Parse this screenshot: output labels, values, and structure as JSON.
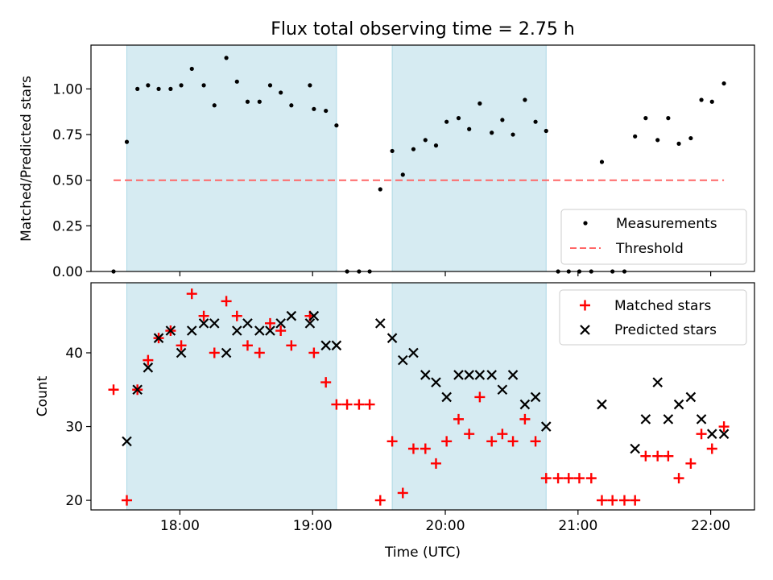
{
  "colors": {
    "shade": "#add8e6",
    "matched": "#ff0000",
    "predicted": "#000000",
    "threshold": "#ff6666",
    "measurement": "#000000"
  },
  "chart_data": [
    {
      "type": "scatter",
      "title": "Flux total observing time = 2.75 h",
      "xlabel": "Time (UTC)",
      "ylabel": "Matched/Predicted stars",
      "xlim_hours": [
        17.33,
        22.33
      ],
      "ylim": [
        0,
        1.24
      ],
      "yticks": [
        0,
        0.25,
        0.5,
        0.75,
        1.0
      ],
      "ytick_labels": [
        "0.00",
        "0.25",
        "0.50",
        "0.75",
        "1.00"
      ],
      "shaded_intervals_hours": [
        [
          17.6,
          19.18
        ],
        [
          19.6,
          20.76
        ]
      ],
      "threshold": {
        "value": 0.5,
        "x_range_hours": [
          17.5,
          22.1
        ]
      },
      "legend": {
        "position": "lower-right",
        "entries": [
          "Measurements",
          "Threshold"
        ]
      },
      "series": [
        {
          "name": "Measurements",
          "marker": "dot",
          "x_hours": [
            17.5,
            17.6,
            17.68,
            17.76,
            17.84,
            17.93,
            18.01,
            18.09,
            18.18,
            18.26,
            18.35,
            18.43,
            18.51,
            18.6,
            18.68,
            18.76,
            18.84,
            18.98,
            19.01,
            19.1,
            19.18,
            19.26,
            19.35,
            19.43,
            19.51,
            19.6,
            19.68,
            19.76,
            19.85,
            19.93,
            20.01,
            20.1,
            20.18,
            20.26,
            20.35,
            20.43,
            20.51,
            20.6,
            20.68,
            20.76,
            20.85,
            20.93,
            21.01,
            21.1,
            21.18,
            21.26,
            21.35,
            21.43,
            21.51,
            21.6,
            21.68,
            21.76,
            21.85,
            21.93,
            22.01,
            22.1
          ],
          "values": [
            0.0,
            0.71,
            1.0,
            1.02,
            1.0,
            1.0,
            1.02,
            1.11,
            1.02,
            0.91,
            1.17,
            1.04,
            0.93,
            0.93,
            1.02,
            0.98,
            0.91,
            1.02,
            0.89,
            0.88,
            0.8,
            0.0,
            0.0,
            0.0,
            0.45,
            0.66,
            0.53,
            0.67,
            0.72,
            0.69,
            0.82,
            0.84,
            0.78,
            0.92,
            0.76,
            0.83,
            0.75,
            0.94,
            0.82,
            0.77,
            0.0,
            0.0,
            0.0,
            0.0,
            0.6,
            0.0,
            0.0,
            0.74,
            0.84,
            0.72,
            0.84,
            0.7,
            0.73,
            0.94,
            0.93,
            1.03
          ]
        }
      ]
    },
    {
      "type": "scatter",
      "xlabel": "Time (UTC)",
      "ylabel": "Count",
      "xlim_hours": [
        17.33,
        22.33
      ],
      "ylim": [
        18.7,
        49.5
      ],
      "yticks": [
        20,
        30,
        40
      ],
      "ytick_labels": [
        "20",
        "30",
        "40"
      ],
      "xticks_hours": [
        18,
        19,
        20,
        21,
        22
      ],
      "xtick_labels": [
        "18:00",
        "19:00",
        "20:00",
        "21:00",
        "22:00"
      ],
      "shaded_intervals_hours": [
        [
          17.6,
          19.18
        ],
        [
          19.6,
          20.76
        ]
      ],
      "legend": {
        "position": "top-right",
        "entries": [
          "Matched stars",
          "Predicted stars"
        ]
      },
      "series": [
        {
          "name": "Matched stars",
          "marker": "plus",
          "x_hours": [
            17.5,
            17.6,
            17.68,
            17.76,
            17.84,
            17.93,
            18.01,
            18.09,
            18.18,
            18.26,
            18.35,
            18.43,
            18.51,
            18.6,
            18.68,
            18.76,
            18.84,
            18.98,
            19.01,
            19.1,
            19.18,
            19.26,
            19.35,
            19.43,
            19.51,
            19.6,
            19.68,
            19.76,
            19.85,
            19.93,
            20.01,
            20.1,
            20.18,
            20.26,
            20.35,
            20.43,
            20.51,
            20.6,
            20.68,
            20.76,
            20.85,
            20.93,
            21.01,
            21.1,
            21.18,
            21.26,
            21.35,
            21.43,
            21.51,
            21.6,
            21.68,
            21.76,
            21.85,
            21.93,
            22.01,
            22.1
          ],
          "values": [
            35,
            20,
            35,
            39,
            42,
            43,
            41,
            48,
            45,
            40,
            47,
            45,
            41,
            40,
            44,
            43,
            41,
            45,
            40,
            36,
            33,
            33,
            33,
            33,
            20,
            28,
            21,
            27,
            27,
            25,
            28,
            31,
            29,
            34,
            28,
            29,
            28,
            31,
            28,
            23,
            23,
            23,
            23,
            23,
            20,
            20,
            20,
            20,
            26,
            26,
            26,
            23,
            25,
            29,
            27,
            30
          ]
        },
        {
          "name": "Predicted stars",
          "marker": "x",
          "x_hours": [
            17.6,
            17.68,
            17.76,
            17.84,
            17.93,
            18.01,
            18.09,
            18.18,
            18.26,
            18.35,
            18.43,
            18.51,
            18.6,
            18.68,
            18.76,
            18.84,
            18.98,
            19.01,
            19.1,
            19.18,
            19.51,
            19.6,
            19.68,
            19.76,
            19.85,
            19.93,
            20.01,
            20.1,
            20.18,
            20.26,
            20.35,
            20.43,
            20.51,
            20.6,
            20.68,
            20.76,
            21.18,
            21.43,
            21.51,
            21.6,
            21.68,
            21.76,
            21.85,
            21.93,
            22.01,
            22.1
          ],
          "values": [
            28,
            35,
            38,
            42,
            43,
            40,
            43,
            44,
            44,
            40,
            43,
            44,
            43,
            43,
            44,
            45,
            44,
            45,
            41,
            41,
            44,
            42,
            39,
            40,
            37,
            36,
            34,
            37,
            37,
            37,
            37,
            35,
            37,
            33,
            34,
            30,
            33,
            27,
            31,
            36,
            31,
            33,
            34,
            31,
            29,
            29
          ]
        }
      ]
    }
  ]
}
